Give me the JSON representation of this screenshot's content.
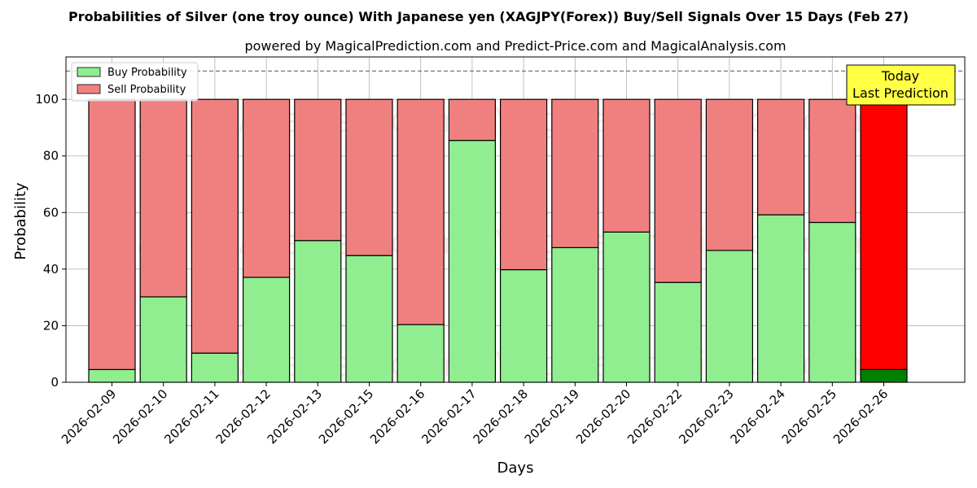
{
  "chart_data": {
    "type": "bar",
    "stacked": true,
    "title": "Probabilities of Silver (one troy ounce) With Japanese yen (XAGJPY(Forex)) Buy/Sell Signals Over 15 Days (Feb 27)",
    "subtitle": "powered by MagicalPrediction.com and Predict-Price.com and MagicalAnalysis.com",
    "xlabel": "Days",
    "ylabel": "Probability",
    "ylim": [
      0,
      115
    ],
    "yticks": [
      0,
      20,
      40,
      60,
      80,
      100
    ],
    "reference_line": 110,
    "grid": true,
    "legend_position": "top-left",
    "categories": [
      "2026-02-09",
      "2026-02-10",
      "2026-02-11",
      "2026-02-12",
      "2026-02-13",
      "2026-02-15",
      "2026-02-16",
      "2026-02-17",
      "2026-02-18",
      "2026-02-19",
      "2026-02-20",
      "2026-02-22",
      "2026-02-23",
      "2026-02-24",
      "2026-02-25",
      "2026-02-26"
    ],
    "series": [
      {
        "name": "Buy Probability",
        "color": "#90ee90",
        "values": [
          4.5,
          30.2,
          10.3,
          37.1,
          50.1,
          44.8,
          20.4,
          85.5,
          39.8,
          47.6,
          53.1,
          35.3,
          46.6,
          59.2,
          56.5,
          4.5
        ]
      },
      {
        "name": "Sell Probability",
        "color": "#f08080",
        "values": [
          95.5,
          69.8,
          89.7,
          62.9,
          49.9,
          55.2,
          79.6,
          14.5,
          60.2,
          52.4,
          46.9,
          64.7,
          53.4,
          40.8,
          43.5,
          95.5
        ]
      }
    ],
    "highlight": {
      "index": 15,
      "buy_color": "#008000",
      "sell_color": "#ff0000",
      "callout_lines": [
        "Today",
        "Last Prediction"
      ],
      "callout_color": "#ffff44"
    },
    "watermarks": [
      "MagicalAnalysis.com",
      "MagicalPrediction.com"
    ]
  }
}
